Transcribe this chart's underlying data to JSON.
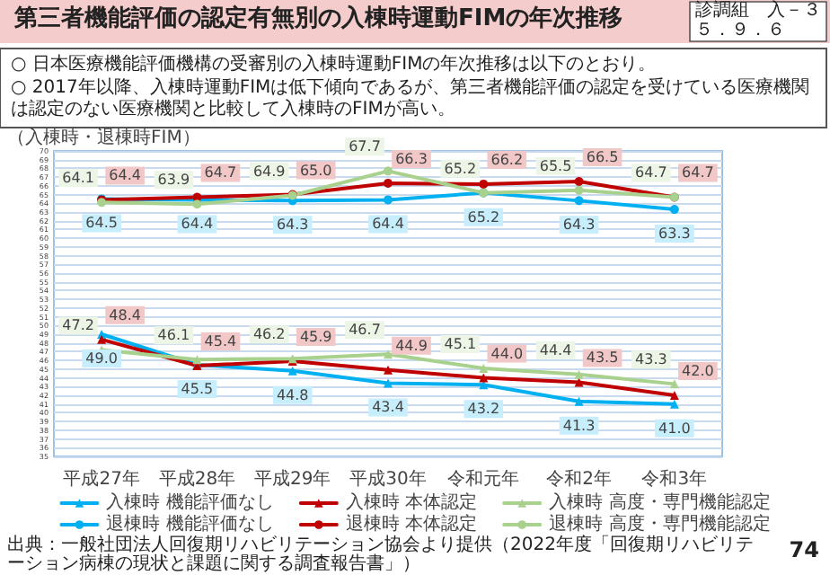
{
  "chart_data": {
    "type": "line",
    "title": "第三者機能評価の認定有無別の入棟時運動FIMの年次推移",
    "ylabel": "（入棟時・退棟時FIM）",
    "annotations": [
      "○ 日本医療機能評価機構の受審別の入棟時運動FIMの年次推移は以下のとおり。",
      "○ 2017年以降、入棟時運動FIMは低下傾向であるが、第三者機能評価の認定を受けている医療機関は認定のない医療機関と比較して入棟時のFIMが高い。",
      "診調組　入－３",
      "５．９．６",
      "出典：一般社団法人回復期リハビリテーション協会より提供（2022年度「回復期リハビリテーション病棟の現状と課題に関する調査報告書」）",
      "74"
    ],
    "categories": [
      "平成27年",
      "平成28年",
      "平成29年",
      "平成30年",
      "令和元年",
      "令和2年",
      "令和3年"
    ],
    "series": [
      {
        "name": "入棟時 機能評価なし",
        "color": "#00b0f0",
        "marker": "triangle",
        "values": [
          49.0,
          45.5,
          44.8,
          43.4,
          43.2,
          41.3,
          41.0
        ],
        "value_labels": [
          "49.0",
          "45.5",
          "44.8",
          "43.4",
          "43.2",
          "41.3",
          "41.0"
        ]
      },
      {
        "name": "入棟時 本体認定",
        "color": "#c00000",
        "marker": "triangle",
        "values": [
          48.4,
          45.4,
          45.9,
          44.9,
          44.0,
          43.5,
          42.0
        ],
        "value_labels": [
          "48.4",
          "45.4",
          "45.9",
          "44.9",
          "44.0",
          "43.5",
          "42.0"
        ]
      },
      {
        "name": "入棟時 高度・専門機能認定",
        "color": "#a9d18e",
        "marker": "triangle",
        "values": [
          47.2,
          46.1,
          46.2,
          46.7,
          45.1,
          44.4,
          43.3
        ],
        "value_labels": [
          "47.2",
          "46.1",
          "46.2",
          "46.7",
          "45.1",
          "44.4",
          "43.3"
        ]
      },
      {
        "name": "退棟時 機能評価なし",
        "color": "#00b0f0",
        "marker": "circle",
        "values": [
          64.5,
          64.4,
          64.3,
          64.4,
          65.2,
          64.3,
          63.3
        ],
        "value_labels": [
          "64.5",
          "64.4",
          "64.3",
          "64.4",
          "65.2",
          "64.3",
          "63.3"
        ]
      },
      {
        "name": "退棟時 本体認定",
        "color": "#c00000",
        "marker": "circle",
        "values": [
          64.4,
          64.7,
          65.0,
          66.3,
          66.2,
          66.5,
          64.7
        ],
        "value_labels": [
          "64.4",
          "64.7",
          "65.0",
          "66.3",
          "66.2",
          "66.5",
          "64.7"
        ]
      },
      {
        "name": "退棟時 高度・専門機能認定",
        "color": "#a9d18e",
        "marker": "circle",
        "values": [
          64.1,
          63.9,
          64.9,
          67.7,
          65.2,
          65.5,
          64.7
        ],
        "value_labels": [
          "64.1",
          "63.9",
          "64.9",
          "67.7",
          "65.2",
          "65.5",
          "64.7"
        ]
      }
    ],
    "ylim": [
      35,
      70
    ],
    "yticks": [
      35,
      36,
      37,
      38,
      39,
      40,
      41,
      42,
      43,
      44,
      45,
      46,
      47,
      48,
      49,
      50,
      51,
      52,
      53,
      54,
      55,
      56,
      57,
      58,
      59,
      60,
      61,
      62,
      63,
      64,
      65,
      66,
      67,
      68,
      69,
      70
    ],
    "grid": "y",
    "legend": "bottom"
  }
}
